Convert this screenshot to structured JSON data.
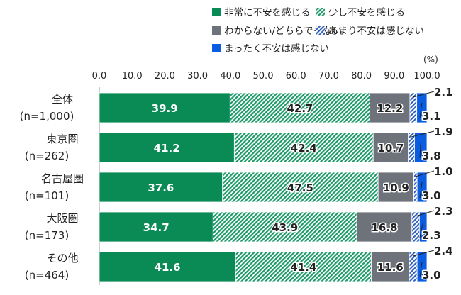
{
  "chart_data": {
    "type": "bar",
    "orientation": "horizontal",
    "stacked": true,
    "unit": "(%)",
    "xlim": [
      0,
      100
    ],
    "xticks": [
      "0.0",
      "10.0",
      "20.0",
      "30.0",
      "40.0",
      "50.0",
      "60.0",
      "70.0",
      "80.0",
      "90.0",
      "100.0"
    ],
    "categories": [
      {
        "name": "全体",
        "n": "(n=1,000)"
      },
      {
        "name": "東京圏",
        "n": "(n=262)"
      },
      {
        "name": "名古屋圏",
        "n": "(n=101)"
      },
      {
        "name": "大阪圏",
        "n": "(n=173)"
      },
      {
        "name": "その他",
        "n": "(n=464)"
      }
    ],
    "series": [
      {
        "name": "非常に不安を感じる",
        "color": "#0a8a54",
        "pattern": "solid",
        "values": [
          39.9,
          41.2,
          37.6,
          34.7,
          41.6
        ]
      },
      {
        "name": "少し不安を感じる",
        "color": "#1e9a6a",
        "pattern": "hatch",
        "values": [
          42.7,
          42.4,
          47.5,
          43.9,
          41.4
        ]
      },
      {
        "name": "わからない/どちらでもない",
        "color": "#6e737b",
        "pattern": "solid",
        "values": [
          12.2,
          10.7,
          10.9,
          16.8,
          11.6
        ]
      },
      {
        "name": "あまり不安は感じない",
        "color": "#2f5fbf",
        "pattern": "hatch",
        "values": [
          2.1,
          1.9,
          1.0,
          2.3,
          2.4
        ]
      },
      {
        "name": "まったく不安は感じない",
        "color": "#0a5ce0",
        "pattern": "solid",
        "values": [
          3.1,
          3.8,
          3.0,
          2.3,
          3.0
        ]
      }
    ],
    "value_labels": [
      [
        "39.9",
        "42.7",
        "12.2",
        "2.1",
        "3.1"
      ],
      [
        "41.2",
        "42.4",
        "10.7",
        "1.9",
        "3.8"
      ],
      [
        "37.6",
        "47.5",
        "10.9",
        "1.0",
        "3.0"
      ],
      [
        "34.7",
        "43.9",
        "16.8",
        "2.3",
        "2.3"
      ],
      [
        "41.6",
        "41.4",
        "11.6",
        "2.4",
        "3.0"
      ]
    ]
  }
}
